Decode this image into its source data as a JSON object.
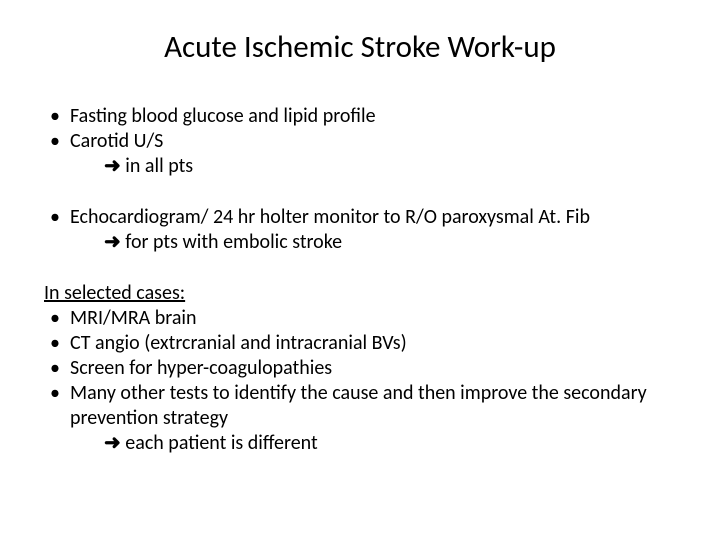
{
  "title": "Acute Ischemic Stroke Work-up",
  "arrow": "➜",
  "block1": {
    "b1": "Fasting blood glucose and lipid profile",
    "b2": "Carotid U/S",
    "sub": " in all pts"
  },
  "block2": {
    "b1": "Echocardiogram/ 24 hr holter monitor to R/O paroxysmal At. Fib",
    "sub": " for pts with embolic  stroke"
  },
  "block3": {
    "heading": "In selected cases:",
    "b1": "MRI/MRA brain",
    "b2": "CT angio (extrcranial and intracranial BVs)",
    "b3": "Screen for hyper-coagulopathies",
    "b4": "Many other tests to identify the cause and then improve the secondary prevention strategy",
    "sub": " each patient is different"
  }
}
